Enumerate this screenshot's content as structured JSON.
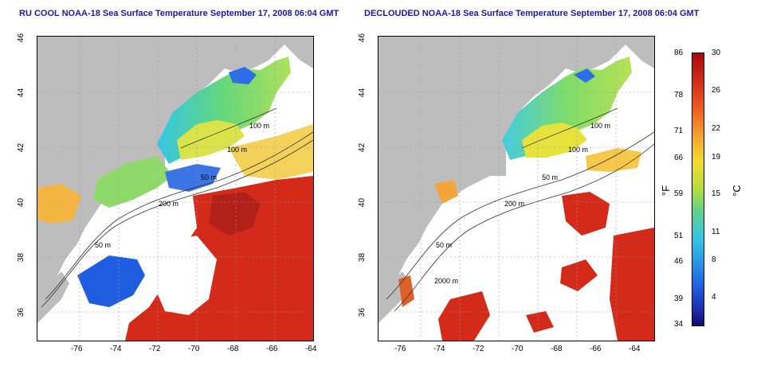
{
  "panels": [
    {
      "title": "RU COOL NOAA-18 Sea Surface Temperature September 17, 2008 06:04 GMT",
      "x_ticks": [
        "-76",
        "-74",
        "-72",
        "-70",
        "-68",
        "-66",
        "-64"
      ],
      "y_ticks": [
        "46",
        "44",
        "42",
        "40",
        "38",
        "36"
      ],
      "depth_labels": [
        "100 m",
        "100 m",
        "50 m",
        "200 m",
        "50 m"
      ]
    },
    {
      "title": "DECLOUDED NOAA-18 Sea Surface Temperature September 17, 2008 06:04 GMT",
      "x_ticks": [
        "-76",
        "-74",
        "-72",
        "-70",
        "-68",
        "-66",
        "-64"
      ],
      "y_ticks": [
        "46",
        "44",
        "42",
        "40",
        "38",
        "36"
      ],
      "depth_labels": [
        "100 m",
        "100 m",
        "50 m",
        "200 m",
        "50 m",
        "2000 m"
      ]
    }
  ],
  "colorbar": {
    "fahrenheit_ticks": [
      "86",
      "78",
      "71",
      "66",
      "59",
      "51",
      "46",
      "39",
      "34"
    ],
    "celsius_ticks": [
      "30",
      "26",
      "22",
      "19",
      "15",
      "11",
      "8",
      "4"
    ],
    "fahrenheit_unit": "°F",
    "celsius_unit": "°C"
  },
  "colors": {
    "land": "#bdbdbd",
    "cloud": "#ffffff",
    "title": "#1a1aa6",
    "warm": "#d42a1a",
    "cool": "#1f5de0"
  }
}
